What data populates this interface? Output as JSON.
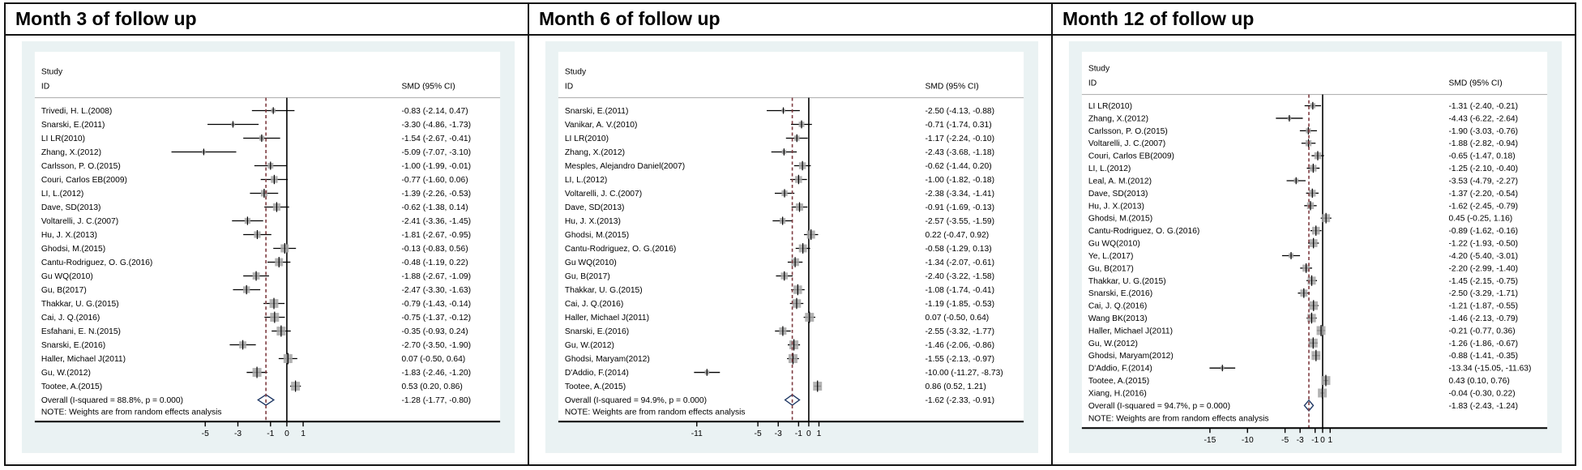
{
  "figure": {
    "kind": "three-panel forest plot (random effects meta-analysis)",
    "colors": {
      "graph_background": "#EAF2F3",
      "plot_background": "#FFFFFF",
      "ci_line": "#000000",
      "marker_fill": "#A6A6A6",
      "overall_dashed_line": "#7E3B40",
      "diamond_outline": "#1F3864",
      "header_rule": "#B3B3B3",
      "axis_line": "#000000",
      "panel_border": "#141414"
    }
  },
  "chart_data": [
    {
      "type": "scatter",
      "variant": "forest",
      "title": "Month 3 of follow up",
      "col_header_line1": "Study",
      "col_header_line2": "ID",
      "value_header": "SMD (95% CI)",
      "note": "NOTE: Weights are from random effects analysis",
      "xlim": [
        -7.6,
        2.0
      ],
      "ticks": [
        -5,
        -3,
        -1,
        0,
        1
      ],
      "studies": [
        {
          "label": "Trivedi, H. L.(2008)",
          "est": -0.83,
          "lo": -2.14,
          "hi": 0.47,
          "text": "-0.83 (-2.14, 0.47)"
        },
        {
          "label": "Snarski, E.(2011)",
          "est": -3.3,
          "lo": -4.86,
          "hi": -1.73,
          "text": "-3.30 (-4.86, -1.73)"
        },
        {
          "label": "LI LR(2010)",
          "est": -1.54,
          "lo": -2.67,
          "hi": -0.41,
          "text": "-1.54 (-2.67, -0.41)"
        },
        {
          "label": "Zhang, X.(2012)",
          "est": -5.09,
          "lo": -7.07,
          "hi": -3.1,
          "text": "-5.09 (-7.07, -3.10)"
        },
        {
          "label": "Carlsson, P. O.(2015)",
          "est": -1.0,
          "lo": -1.99,
          "hi": -0.01,
          "text": "-1.00 (-1.99, -0.01)"
        },
        {
          "label": "Couri, Carlos EB(2009)",
          "est": -0.77,
          "lo": -1.6,
          "hi": 0.06,
          "text": "-0.77 (-1.60, 0.06)"
        },
        {
          "label": "LI, L.(2012)",
          "est": -1.39,
          "lo": -2.26,
          "hi": -0.53,
          "text": "-1.39 (-2.26, -0.53)"
        },
        {
          "label": "Dave, SD(2013)",
          "est": -0.62,
          "lo": -1.38,
          "hi": 0.14,
          "text": "-0.62 (-1.38, 0.14)"
        },
        {
          "label": "Voltarelli, J. C.(2007)",
          "est": -2.41,
          "lo": -3.36,
          "hi": -1.45,
          "text": "-2.41 (-3.36, -1.45)"
        },
        {
          "label": "Hu, J. X.(2013)",
          "est": -1.81,
          "lo": -2.67,
          "hi": -0.95,
          "text": "-1.81 (-2.67, -0.95)"
        },
        {
          "label": "Ghodsi, M.(2015)",
          "est": -0.13,
          "lo": -0.83,
          "hi": 0.56,
          "text": "-0.13 (-0.83, 0.56)"
        },
        {
          "label": "Cantu-Rodriguez, O. G.(2016)",
          "est": -0.48,
          "lo": -1.19,
          "hi": 0.22,
          "text": "-0.48 (-1.19, 0.22)"
        },
        {
          "label": "Gu WQ(2010)",
          "est": -1.88,
          "lo": -2.67,
          "hi": -1.09,
          "text": "-1.88 (-2.67, -1.09)"
        },
        {
          "label": "Gu, B(2017)",
          "est": -2.47,
          "lo": -3.3,
          "hi": -1.63,
          "text": "-2.47 (-3.30, -1.63)"
        },
        {
          "label": "Thakkar, U. G.(2015)",
          "est": -0.79,
          "lo": -1.43,
          "hi": -0.14,
          "text": "-0.79 (-1.43, -0.14)"
        },
        {
          "label": "Cai, J. Q.(2016)",
          "est": -0.75,
          "lo": -1.37,
          "hi": -0.12,
          "text": "-0.75 (-1.37, -0.12)"
        },
        {
          "label": "Esfahani, E. N.(2015)",
          "est": -0.35,
          "lo": -0.93,
          "hi": 0.24,
          "text": "-0.35 (-0.93, 0.24)"
        },
        {
          "label": "Snarski, E.(2016)",
          "est": -2.7,
          "lo": -3.5,
          "hi": -1.9,
          "text": "-2.70 (-3.50, -1.90)"
        },
        {
          "label": "Haller, Michael J(2011)",
          "est": 0.07,
          "lo": -0.5,
          "hi": 0.64,
          "text": "0.07 (-0.50, 0.64)"
        },
        {
          "label": "Gu, W.(2012)",
          "est": -1.83,
          "lo": -2.46,
          "hi": -1.2,
          "text": "-1.83 (-2.46, -1.20)"
        },
        {
          "label": "Tootee, A.(2015)",
          "est": 0.53,
          "lo": 0.2,
          "hi": 0.86,
          "text": "0.53 (0.20, 0.86)"
        }
      ],
      "overall": {
        "label": "Overall  (I-squared = 88.8%, p = 0.000)",
        "est": -1.28,
        "lo": -1.77,
        "hi": -0.8,
        "text": "-1.28 (-1.77, -0.80)"
      }
    },
    {
      "type": "scatter",
      "variant": "forest",
      "title": "Month 6 of follow up",
      "col_header_line1": "Study",
      "col_header_line2": "ID",
      "value_header": "SMD (95% CI)",
      "note": "NOTE: Weights are from random effects analysis",
      "xlim": [
        -11.9,
        1.8
      ],
      "ticks": [
        -11,
        -5,
        -3,
        -1,
        0,
        1
      ],
      "studies": [
        {
          "label": "Snarski, E.(2011)",
          "est": -2.5,
          "lo": -4.13,
          "hi": -0.88,
          "text": "-2.50 (-4.13, -0.88)"
        },
        {
          "label": "Vanikar, A. V.(2010)",
          "est": -0.71,
          "lo": -1.74,
          "hi": 0.31,
          "text": "-0.71 (-1.74, 0.31)"
        },
        {
          "label": "LI LR(2010)",
          "est": -1.17,
          "lo": -2.24,
          "hi": -0.1,
          "text": "-1.17 (-2.24, -0.10)"
        },
        {
          "label": "Zhang, X.(2012)",
          "est": -2.43,
          "lo": -3.68,
          "hi": -1.18,
          "text": "-2.43 (-3.68, -1.18)"
        },
        {
          "label": "Mesples, Alejandro Daniel(2007)",
          "est": -0.62,
          "lo": -1.44,
          "hi": 0.2,
          "text": "-0.62 (-1.44, 0.20)"
        },
        {
          "label": "LI, L.(2012)",
          "est": -1.0,
          "lo": -1.82,
          "hi": -0.18,
          "text": "-1.00 (-1.82, -0.18)"
        },
        {
          "label": "Voltarelli, J. C.(2007)",
          "est": -2.38,
          "lo": -3.34,
          "hi": -1.41,
          "text": "-2.38 (-3.34, -1.41)"
        },
        {
          "label": "Dave, SD(2013)",
          "est": -0.91,
          "lo": -1.69,
          "hi": -0.13,
          "text": "-0.91 (-1.69, -0.13)"
        },
        {
          "label": "Hu, J. X.(2013)",
          "est": -2.57,
          "lo": -3.55,
          "hi": -1.59,
          "text": "-2.57 (-3.55, -1.59)"
        },
        {
          "label": "Ghodsi, M.(2015)",
          "est": 0.22,
          "lo": -0.47,
          "hi": 0.92,
          "text": "0.22 (-0.47, 0.92)"
        },
        {
          "label": "Cantu-Rodriguez, O. G.(2016)",
          "est": -0.58,
          "lo": -1.29,
          "hi": 0.13,
          "text": "-0.58 (-1.29, 0.13)"
        },
        {
          "label": "Gu WQ(2010)",
          "est": -1.34,
          "lo": -2.07,
          "hi": -0.61,
          "text": "-1.34 (-2.07, -0.61)"
        },
        {
          "label": "Gu, B(2017)",
          "est": -2.4,
          "lo": -3.22,
          "hi": -1.58,
          "text": "-2.40 (-3.22, -1.58)"
        },
        {
          "label": "Thakkar, U. G.(2015)",
          "est": -1.08,
          "lo": -1.74,
          "hi": -0.41,
          "text": "-1.08 (-1.74, -0.41)"
        },
        {
          "label": "Cai, J. Q.(2016)",
          "est": -1.19,
          "lo": -1.85,
          "hi": -0.53,
          "text": "-1.19 (-1.85, -0.53)"
        },
        {
          "label": "Haller, Michael J(2011)",
          "est": 0.07,
          "lo": -0.5,
          "hi": 0.64,
          "text": "0.07 (-0.50, 0.64)"
        },
        {
          "label": "Snarski, E.(2016)",
          "est": -2.55,
          "lo": -3.32,
          "hi": -1.77,
          "text": "-2.55 (-3.32, -1.77)"
        },
        {
          "label": "Gu, W.(2012)",
          "est": -1.46,
          "lo": -2.06,
          "hi": -0.86,
          "text": "-1.46 (-2.06, -0.86)"
        },
        {
          "label": "Ghodsi, Maryam(2012)",
          "est": -1.55,
          "lo": -2.13,
          "hi": -0.97,
          "text": "-1.55 (-2.13, -0.97)"
        },
        {
          "label": "D'Addio, F.(2014)",
          "est": -10.0,
          "lo": -11.27,
          "hi": -8.73,
          "text": "-10.00 (-11.27, -8.73)"
        },
        {
          "label": "Tootee, A.(2015)",
          "est": 0.86,
          "lo": 0.52,
          "hi": 1.21,
          "text": "0.86 (0.52, 1.21)"
        }
      ],
      "overall": {
        "label": "Overall  (I-squared = 94.9%, p = 0.000)",
        "est": -1.62,
        "lo": -2.33,
        "hi": -0.91,
        "text": "-1.62 (-2.33, -0.91)"
      }
    },
    {
      "type": "scatter",
      "variant": "forest",
      "title": "Month 12 of follow up",
      "col_header_line1": "Study",
      "col_header_line2": "ID",
      "value_header": "SMD (95% CI)",
      "note": "NOTE: Weights are from random effects analysis",
      "xlim": [
        -16.5,
        1.8
      ],
      "ticks": [
        -15,
        -10,
        -5,
        -3,
        -1,
        0,
        1
      ],
      "studies": [
        {
          "label": "LI LR(2010)",
          "est": -1.31,
          "lo": -2.4,
          "hi": -0.21,
          "text": "-1.31 (-2.40, -0.21)"
        },
        {
          "label": "Zhang, X.(2012)",
          "est": -4.43,
          "lo": -6.22,
          "hi": -2.64,
          "text": "-4.43 (-6.22, -2.64)"
        },
        {
          "label": "Carlsson, P. O.(2015)",
          "est": -1.9,
          "lo": -3.03,
          "hi": -0.76,
          "text": "-1.90 (-3.03, -0.76)"
        },
        {
          "label": "Voltarelli, J. C.(2007)",
          "est": -1.88,
          "lo": -2.82,
          "hi": -0.94,
          "text": "-1.88 (-2.82, -0.94)"
        },
        {
          "label": "Couri, Carlos EB(2009)",
          "est": -0.65,
          "lo": -1.47,
          "hi": 0.18,
          "text": "-0.65 (-1.47, 0.18)"
        },
        {
          "label": "LI, L.(2012)",
          "est": -1.25,
          "lo": -2.1,
          "hi": -0.4,
          "text": "-1.25 (-2.10, -0.40)"
        },
        {
          "label": "Leal, A. M.(2012)",
          "est": -3.53,
          "lo": -4.79,
          "hi": -2.27,
          "text": "-3.53 (-4.79, -2.27)"
        },
        {
          "label": "Dave, SD(2013)",
          "est": -1.37,
          "lo": -2.2,
          "hi": -0.54,
          "text": "-1.37 (-2.20, -0.54)"
        },
        {
          "label": "Hu, J. X.(2013)",
          "est": -1.62,
          "lo": -2.45,
          "hi": -0.79,
          "text": "-1.62 (-2.45, -0.79)"
        },
        {
          "label": "Ghodsi, M.(2015)",
          "est": 0.45,
          "lo": -0.25,
          "hi": 1.16,
          "text": "0.45 (-0.25, 1.16)"
        },
        {
          "label": "Cantu-Rodriguez, O. G.(2016)",
          "est": -0.89,
          "lo": -1.62,
          "hi": -0.16,
          "text": "-0.89 (-1.62, -0.16)"
        },
        {
          "label": "Gu WQ(2010)",
          "est": -1.22,
          "lo": -1.93,
          "hi": -0.5,
          "text": "-1.22 (-1.93, -0.50)"
        },
        {
          "label": "Ye, L.(2017)",
          "est": -4.2,
          "lo": -5.4,
          "hi": -3.01,
          "text": "-4.20 (-5.40, -3.01)"
        },
        {
          "label": "Gu, B(2017)",
          "est": -2.2,
          "lo": -2.99,
          "hi": -1.4,
          "text": "-2.20 (-2.99, -1.40)"
        },
        {
          "label": "Thakkar, U. G.(2015)",
          "est": -1.45,
          "lo": -2.15,
          "hi": -0.75,
          "text": "-1.45 (-2.15, -0.75)"
        },
        {
          "label": "Snarski, E.(2016)",
          "est": -2.5,
          "lo": -3.29,
          "hi": -1.71,
          "text": "-2.50 (-3.29, -1.71)"
        },
        {
          "label": "Cai, J. Q.(2016)",
          "est": -1.21,
          "lo": -1.87,
          "hi": -0.55,
          "text": "-1.21 (-1.87, -0.55)"
        },
        {
          "label": "Wang BK(2013)",
          "est": -1.46,
          "lo": -2.13,
          "hi": -0.79,
          "text": "-1.46 (-2.13, -0.79)"
        },
        {
          "label": "Haller, Michael J(2011)",
          "est": -0.21,
          "lo": -0.77,
          "hi": 0.36,
          "text": "-0.21 (-0.77, 0.36)"
        },
        {
          "label": "Gu, W.(2012)",
          "est": -1.26,
          "lo": -1.86,
          "hi": -0.67,
          "text": "-1.26 (-1.86, -0.67)"
        },
        {
          "label": "Ghodsi, Maryam(2012)",
          "est": -0.88,
          "lo": -1.41,
          "hi": -0.35,
          "text": "-0.88 (-1.41, -0.35)"
        },
        {
          "label": "D'Addio, F.(2014)",
          "est": -13.34,
          "lo": -15.05,
          "hi": -11.63,
          "text": "-13.34 (-15.05, -11.63)"
        },
        {
          "label": "Tootee, A.(2015)",
          "est": 0.43,
          "lo": 0.1,
          "hi": 0.76,
          "text": "0.43 (0.10, 0.76)"
        },
        {
          "label": "Xiang, H.(2016)",
          "est": -0.04,
          "lo": -0.3,
          "hi": 0.22,
          "text": "-0.04 (-0.30, 0.22)"
        }
      ],
      "overall": {
        "label": "Overall  (I-squared = 94.7%, p = 0.000)",
        "est": -1.83,
        "lo": -2.43,
        "hi": -1.24,
        "text": "-1.83 (-2.43, -1.24)"
      }
    }
  ]
}
